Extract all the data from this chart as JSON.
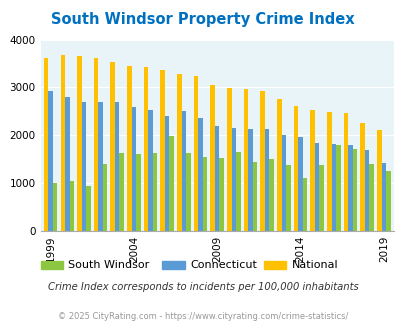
{
  "title": "South Windsor Property Crime Index",
  "years": [
    1999,
    2000,
    2001,
    2002,
    2003,
    2004,
    2005,
    2006,
    2007,
    2008,
    2009,
    2010,
    2011,
    2012,
    2013,
    2014,
    2015,
    2016,
    2017,
    2018,
    2019
  ],
  "south_windsor": [
    1010,
    1040,
    930,
    1390,
    1620,
    1600,
    1620,
    1980,
    1640,
    1540,
    1530,
    1650,
    1450,
    1510,
    1380,
    1100,
    1380,
    1800,
    1720,
    1400,
    1260
  ],
  "connecticut": [
    2920,
    2790,
    2690,
    2690,
    2700,
    2600,
    2520,
    2410,
    2500,
    2370,
    2190,
    2160,
    2130,
    2130,
    2010,
    1970,
    1840,
    1820,
    1790,
    1690,
    1430
  ],
  "national": [
    3620,
    3680,
    3650,
    3620,
    3530,
    3450,
    3420,
    3360,
    3290,
    3230,
    3050,
    2980,
    2960,
    2920,
    2760,
    2620,
    2520,
    2490,
    2460,
    2260,
    2110
  ],
  "sw_color": "#8dc641",
  "ct_color": "#5b9bd5",
  "nat_color": "#ffc000",
  "bg_color": "#e8f4f8",
  "title_color": "#0070c0",
  "ylim": [
    0,
    4000
  ],
  "yticks": [
    0,
    1000,
    2000,
    3000,
    4000
  ],
  "xlabel_years": [
    1999,
    2004,
    2009,
    2014,
    2019
  ],
  "subtitle": "Crime Index corresponds to incidents per 100,000 inhabitants",
  "footer": "© 2025 CityRating.com - https://www.cityrating.com/crime-statistics/",
  "legend_labels": [
    "South Windsor",
    "Connecticut",
    "National"
  ]
}
